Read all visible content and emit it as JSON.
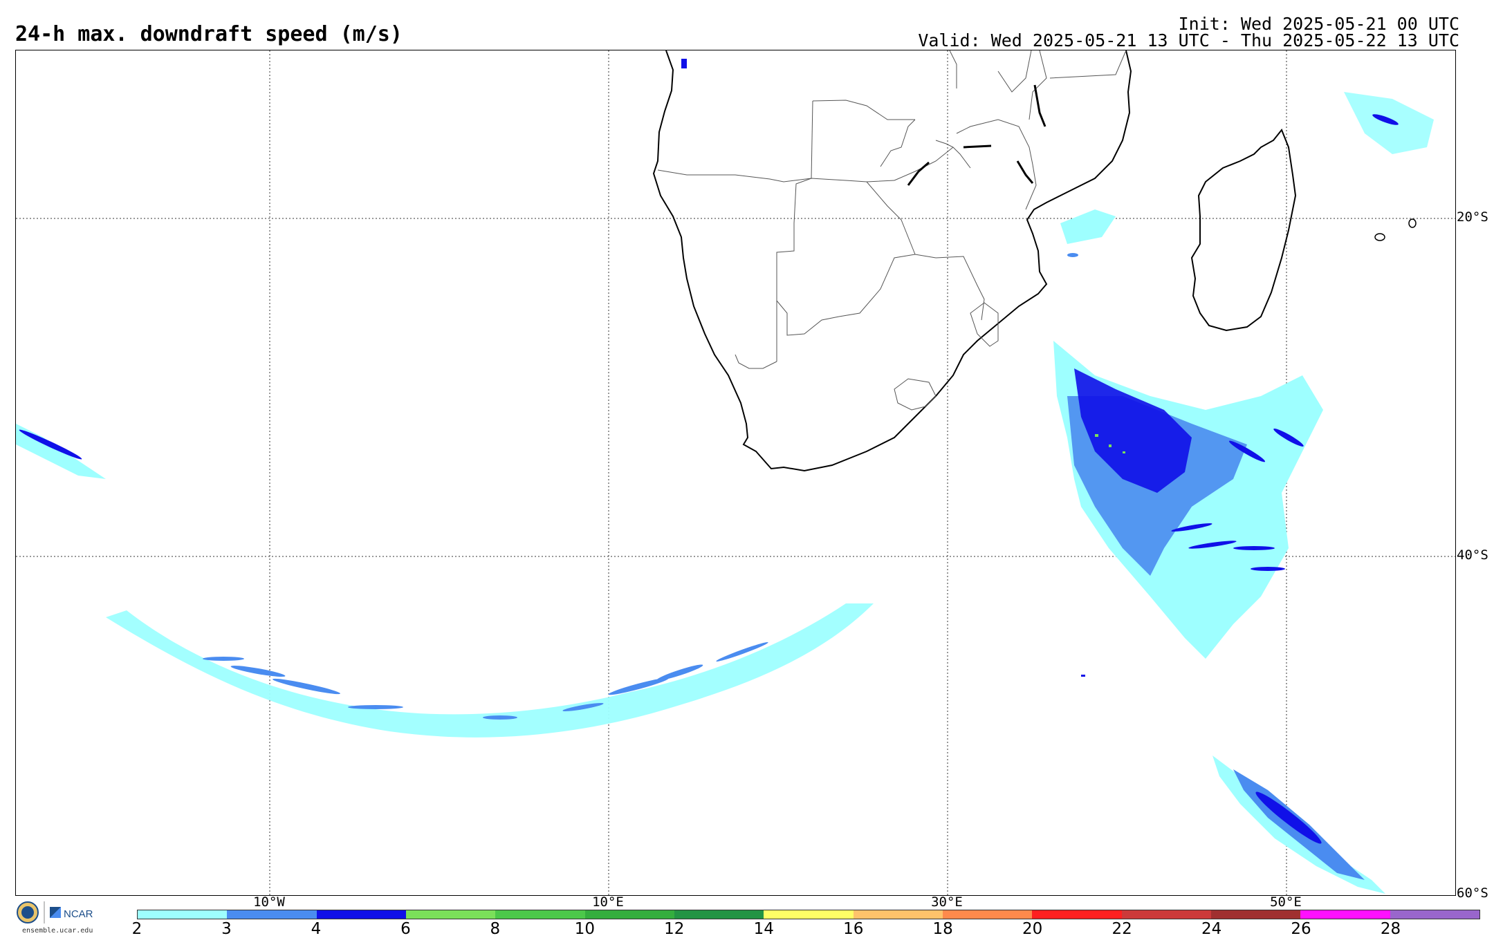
{
  "header": {
    "title": "24-h max. downdraft speed (m/s)",
    "init": "Init: Wed 2025-05-21 00 UTC",
    "valid": "Valid: Wed 2025-05-21 13 UTC - Thu 2025-05-22 13 UTC"
  },
  "map": {
    "lat_labels": [
      "20°S",
      "40°S",
      "60°S"
    ],
    "lon_labels": [
      "10°W",
      "10°E",
      "30°E",
      "50°E"
    ],
    "grid_style": "dotted"
  },
  "colorbar": {
    "labels": [
      "2",
      "3",
      "4",
      "6",
      "8",
      "10",
      "12",
      "14",
      "16",
      "18",
      "20",
      "22",
      "24",
      "26",
      "28"
    ],
    "colors": [
      "#9effff",
      "#4a8cf0",
      "#1010e8",
      "#7be05a",
      "#4cc84a",
      "#34ae3e",
      "#239444",
      "#ffff66",
      "#ffc36b",
      "#ff8a4c",
      "#ff2020",
      "#cc3a3a",
      "#a03030",
      "#ff10ff",
      "#9966cc"
    ]
  },
  "footer": {
    "logo_text": "NCAR",
    "site": "ensemble.ucar.edu"
  }
}
